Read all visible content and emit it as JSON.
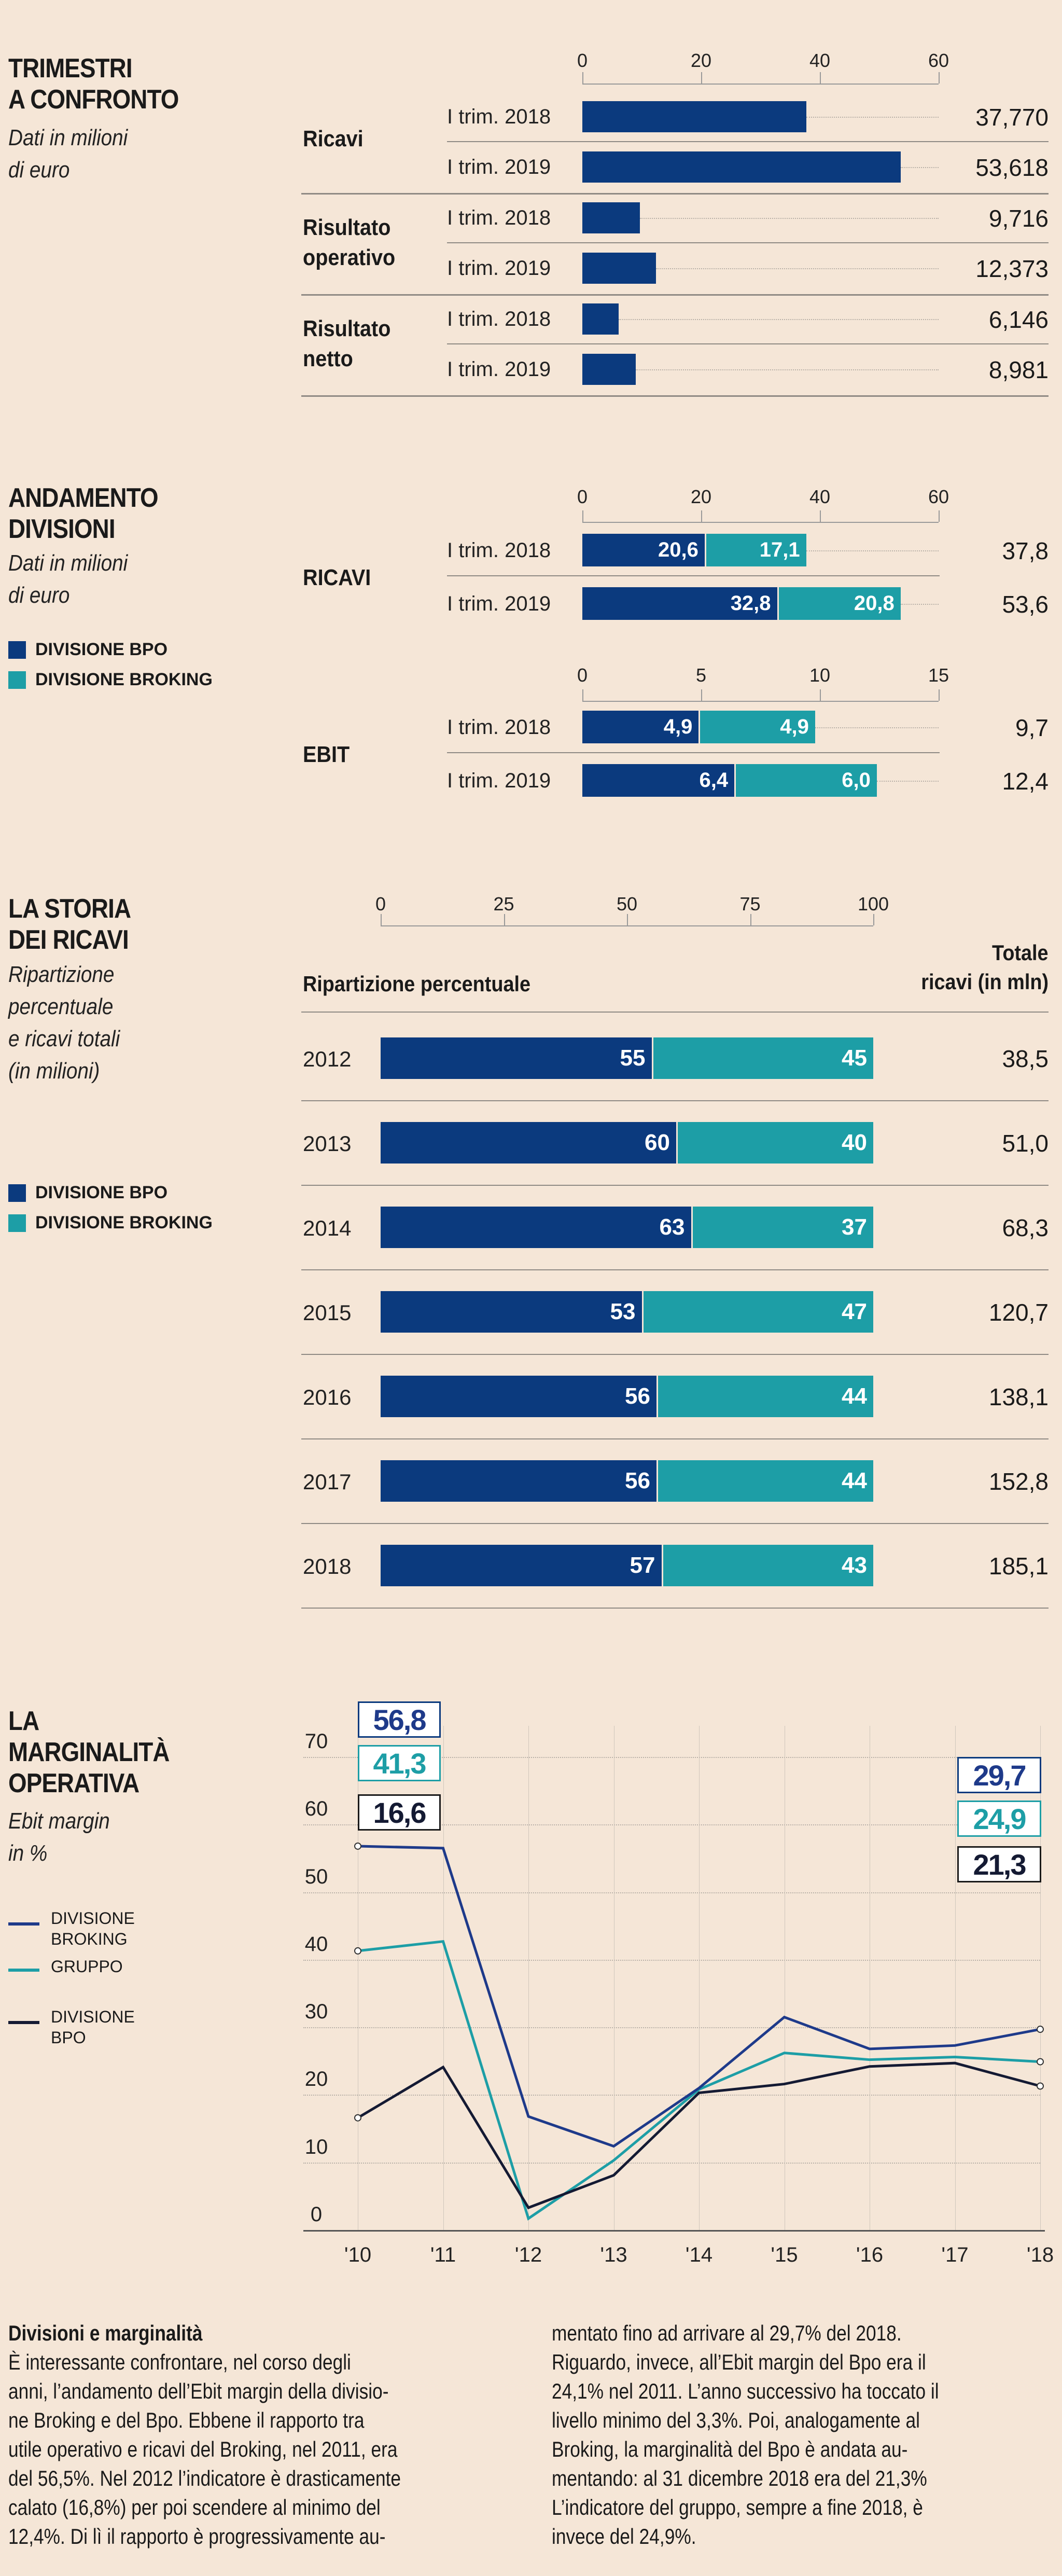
{
  "colors": {
    "background": "#f5e6d7",
    "bpo": "#0b3a7e",
    "broking": "#1d9ea6",
    "line_broking": "#1e3a8a",
    "line_gruppo": "#1d9ea6",
    "line_bpo": "#141a33"
  },
  "section1": {
    "title": [
      "TRIMESTRI",
      "A CONFRONTO"
    ],
    "subtitle": [
      "Dati in milioni",
      "di euro"
    ],
    "chart_data": {
      "type": "bar",
      "xlim": [
        0,
        60
      ],
      "ticks": [
        "0",
        "20",
        "40",
        "60"
      ],
      "groups": [
        {
          "label": [
            "Ricavi"
          ],
          "rows": [
            {
              "period": "I trim. 2018",
              "value": 37.77,
              "label": "37,770"
            },
            {
              "period": "I trim. 2019",
              "value": 53.618,
              "label": "53,618"
            }
          ]
        },
        {
          "label": [
            "Risultato",
            "operativo"
          ],
          "rows": [
            {
              "period": "I trim. 2018",
              "value": 9.716,
              "label": "9,716"
            },
            {
              "period": "I trim. 2019",
              "value": 12.373,
              "label": "12,373"
            }
          ]
        },
        {
          "label": [
            "Risultato",
            "netto"
          ],
          "rows": [
            {
              "period": "I trim. 2018",
              "value": 6.146,
              "label": "6,146"
            },
            {
              "period": "I trim. 2019",
              "value": 8.981,
              "label": "8,981"
            }
          ]
        }
      ]
    }
  },
  "section2": {
    "title": [
      "ANDAMENTO",
      "DIVISIONI"
    ],
    "subtitle": [
      "Dati in milioni",
      "di euro"
    ],
    "legend": [
      "DIVISIONE BPO",
      "DIVISIONE BROKING"
    ],
    "chart_data": [
      {
        "type": "stacked-bar",
        "label": "RICAVI",
        "xlim": [
          0,
          60
        ],
        "ticks": [
          "0",
          "20",
          "40",
          "60"
        ],
        "rows": [
          {
            "period": "I trim. 2018",
            "bpo": 20.6,
            "bpo_label": "20,6",
            "broking": 17.1,
            "broking_label": "17,1",
            "total": "37,8"
          },
          {
            "period": "I trim. 2019",
            "bpo": 32.8,
            "bpo_label": "32,8",
            "broking": 20.8,
            "broking_label": "20,8",
            "total": "53,6"
          }
        ]
      },
      {
        "type": "stacked-bar",
        "label": "EBIT",
        "xlim": [
          0,
          15
        ],
        "ticks": [
          "0",
          "5",
          "10",
          "15"
        ],
        "rows": [
          {
            "period": "I trim. 2018",
            "bpo": 4.9,
            "bpo_label": "4,9",
            "broking": 4.9,
            "broking_label": "4,9",
            "total": "9,7"
          },
          {
            "period": "I trim. 2019",
            "bpo": 6.4,
            "bpo_label": "6,4",
            "broking": 6.0,
            "broking_label": "6,0",
            "total": "12,4"
          }
        ]
      }
    ]
  },
  "section3": {
    "title": [
      "LA STORIA",
      "DEI RICAVI"
    ],
    "subtitle": [
      "Ripartizione",
      "percentuale",
      "e ricavi totali",
      "(in milioni)"
    ],
    "legend": [
      "DIVISIONE BPO",
      "DIVISIONE BROKING"
    ],
    "col_header": "Ripartizione percentuale",
    "total_header": [
      "Totale",
      "ricavi (in mln)"
    ],
    "chart_data": {
      "type": "stacked-bar",
      "xlim": [
        0,
        100
      ],
      "ticks": [
        "0",
        "25",
        "50",
        "75",
        "100"
      ],
      "rows": [
        {
          "year": "2012",
          "bpo": 55,
          "broking": 45,
          "total": "38,5"
        },
        {
          "year": "2013",
          "bpo": 60,
          "broking": 40,
          "total": "51,0"
        },
        {
          "year": "2014",
          "bpo": 63,
          "broking": 37,
          "total": "68,3"
        },
        {
          "year": "2015",
          "bpo": 53,
          "broking": 47,
          "total": "120,7"
        },
        {
          "year": "2016",
          "bpo": 56,
          "broking": 44,
          "total": "138,1"
        },
        {
          "year": "2017",
          "bpo": 56,
          "broking": 44,
          "total": "152,8"
        },
        {
          "year": "2018",
          "bpo": 57,
          "broking": 43,
          "total": "185,1"
        }
      ]
    }
  },
  "section4": {
    "title": [
      "LA",
      "MARGINALITÀ",
      "OPERATIVA"
    ],
    "subtitle": [
      "Ebit margin",
      "in %"
    ],
    "chart_data": {
      "type": "line",
      "ylim": [
        0,
        70
      ],
      "yticks": [
        "0",
        "10",
        "20",
        "30",
        "40",
        "50",
        "60",
        "70"
      ],
      "x": [
        "'10",
        "'11",
        "'12",
        "'13",
        "'14",
        "'15",
        "'16",
        "'17",
        "'18"
      ],
      "series": [
        {
          "name": [
            "DIVISIONE",
            "BROKING"
          ],
          "key": "broking",
          "values": [
            56.8,
            56.5,
            16.8,
            12.4,
            21.0,
            31.5,
            26.8,
            27.3,
            29.7
          ],
          "start_label": "56,8",
          "end_label": "29,7"
        },
        {
          "name": [
            "GRUPPO"
          ],
          "key": "gruppo",
          "values": [
            41.3,
            42.7,
            1.7,
            10.3,
            20.8,
            26.2,
            25.2,
            25.6,
            24.9
          ],
          "start_label": "41,3",
          "end_label": "24,9"
        },
        {
          "name": [
            "DIVISIONE",
            "BPO"
          ],
          "key": "bpo",
          "values": [
            16.6,
            24.1,
            3.3,
            8.1,
            20.3,
            21.6,
            24.2,
            24.7,
            21.3
          ],
          "start_label": "16,6",
          "end_label": "21,3"
        }
      ]
    }
  },
  "article": {
    "heading": "Divisioni e marginalità",
    "col1": [
      "È interessante confrontare, nel corso degli",
      "anni, l’andamento dell’Ebit margin della divisio-",
      "ne Broking e del Bpo. Ebbene il rapporto tra",
      "utile operativo e ricavi del Broking, nel 2011, era",
      "del 56,5%. Nel 2012 l’indicatore è drasticamente",
      "calato (16,8%) per poi scendere al minimo del",
      "12,4%. Di lì il rapporto è progressivamente au-"
    ],
    "col2": [
      "mentato fino ad arrivare al 29,7% del 2018.",
      "Riguardo, invece, all’Ebit margin del Bpo era il",
      "24,1% nel 2011. L’anno successivo ha toccato il",
      "livello minimo del 3,3%. Poi, analogamente al",
      "Broking, la marginalità del Bpo è andata au-",
      "mentando: al 31 dicembre 2018 era del 21,3%",
      "L’indicatore del gruppo, sempre a fine 2018, è",
      "invece del 24,9%."
    ]
  }
}
